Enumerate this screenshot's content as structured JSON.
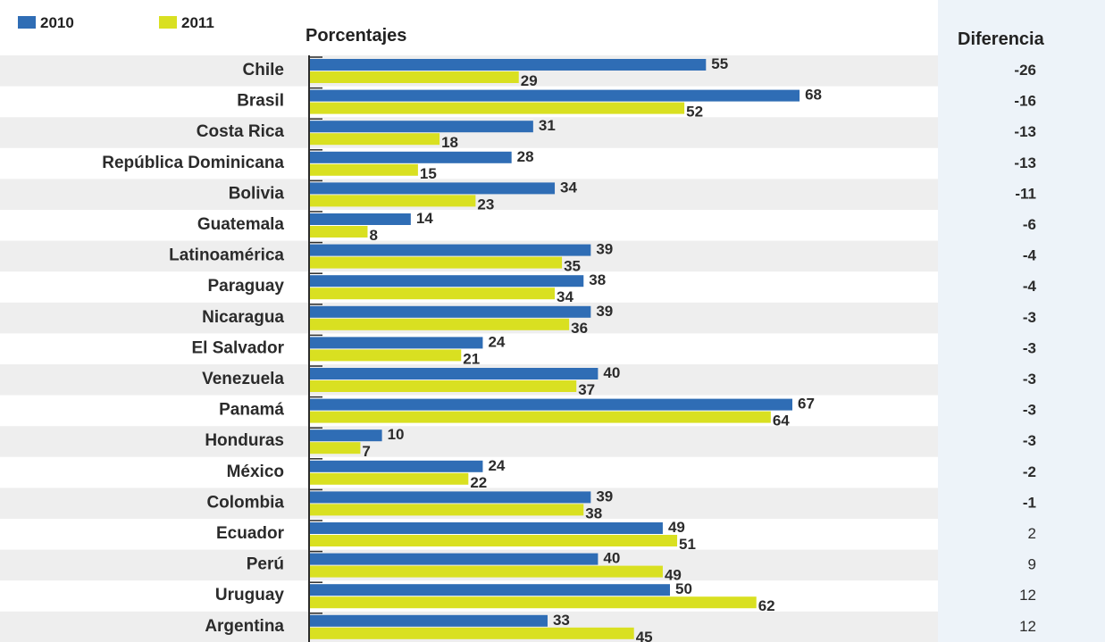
{
  "chart_data": {
    "type": "bar",
    "orientation": "horizontal",
    "title": "Porcentajes",
    "diff_header": "Diferencia",
    "xlim": [
      0,
      100
    ],
    "legend_position": "top-left",
    "grid": false,
    "colors": {
      "2010": "#2f6db5",
      "2011": "#d9e021",
      "row_band": "#eeeeee",
      "diff_band": "#eaf1f8"
    },
    "categories": [
      "Chile",
      "Brasil",
      "Costa Rica",
      "República Dominicana",
      "Bolivia",
      "Guatemala",
      "Latinoamérica",
      "Paraguay",
      "Nicaragua",
      "El Salvador",
      "Venezuela",
      "Panamá",
      "Honduras",
      "México",
      "Colombia",
      "Ecuador",
      "Perú",
      "Uruguay",
      "Argentina"
    ],
    "highlight_category": "Latinoamérica",
    "series": [
      {
        "name": "2010",
        "values": [
          55,
          68,
          31,
          28,
          34,
          14,
          39,
          38,
          39,
          24,
          40,
          67,
          10,
          24,
          39,
          49,
          40,
          50,
          33
        ]
      },
      {
        "name": "2011",
        "values": [
          29,
          52,
          18,
          15,
          23,
          8,
          35,
          34,
          36,
          21,
          37,
          64,
          7,
          22,
          38,
          51,
          49,
          62,
          45
        ]
      }
    ],
    "difference": [
      "-26",
      "-16",
      "-13",
      "-13",
      "-11",
      "-6",
      "-4",
      "-4",
      "-3",
      "-3",
      "-3",
      "-3",
      "-3",
      "-2",
      "-1",
      "2",
      "9",
      "12",
      "12"
    ]
  }
}
